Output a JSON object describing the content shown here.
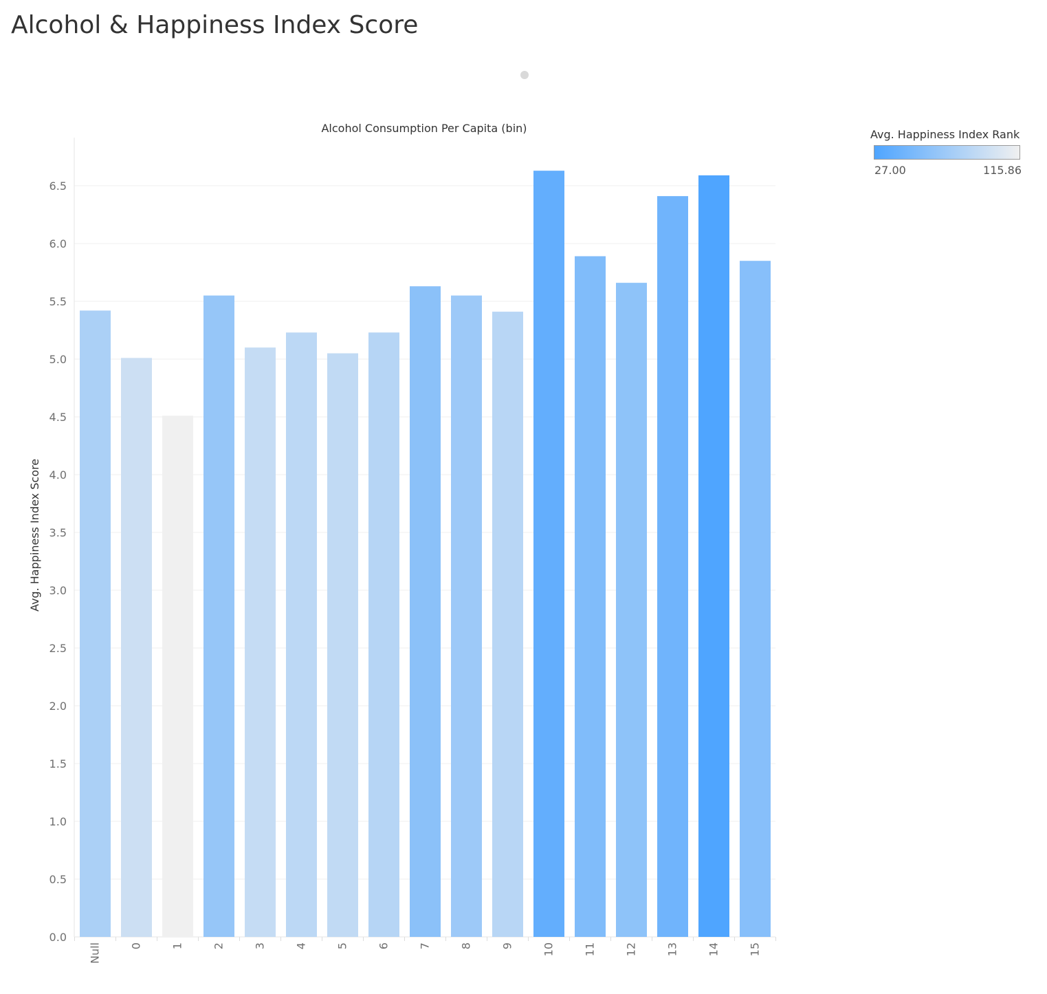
{
  "page": {
    "title": "Alcohol & Happiness Index Score"
  },
  "legend": {
    "title": "Avg. Happiness Index Rank",
    "min_label": "27.00",
    "max_label": "115.86",
    "color_low": "#4fa5ff",
    "color_high": "#f0f0f0"
  },
  "chart_data": {
    "type": "bar",
    "title": "Alcohol Consumption Per Capita (bin)",
    "xlabel": "Alcohol Consumption Per Capita (bin)",
    "ylabel": "Avg. Happiness Index Score",
    "categories": [
      "Null",
      "0",
      "1",
      "2",
      "3",
      "4",
      "5",
      "6",
      "7",
      "8",
      "9",
      "10",
      "11",
      "12",
      "13",
      "14",
      "15"
    ],
    "values": [
      5.42,
      5.01,
      4.51,
      5.55,
      5.1,
      5.23,
      5.05,
      5.23,
      5.63,
      5.55,
      5.41,
      6.63,
      5.89,
      5.66,
      6.41,
      6.59,
      5.85
    ],
    "color_rank": [
      78,
      96,
      115.86,
      66,
      92,
      87,
      90,
      84,
      60,
      70,
      85,
      38,
      54,
      62,
      45,
      27,
      58
    ],
    "color_scale": {
      "min": 27.0,
      "max": 115.86,
      "low_color": "#4fa5ff",
      "high_color": "#f0f0f0"
    },
    "ylim": [
      0,
      6.95
    ],
    "yticks": [
      "0.0",
      "0.5",
      "1.0",
      "1.5",
      "2.0",
      "2.5",
      "3.0",
      "3.5",
      "4.0",
      "4.5",
      "5.0",
      "5.5",
      "6.0",
      "6.5"
    ],
    "grid": true,
    "legend_position": "top-right"
  }
}
